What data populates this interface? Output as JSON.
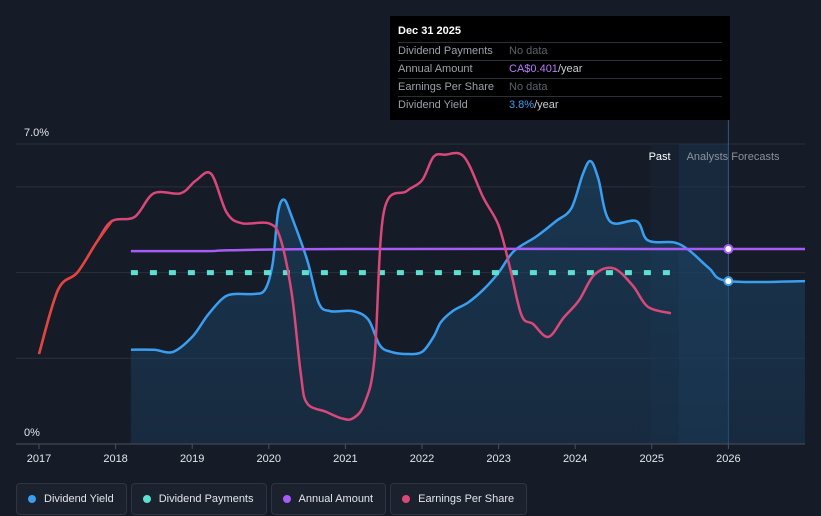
{
  "tooltip": {
    "date": "Dec 31 2025",
    "rows": [
      {
        "label": "Dividend Payments",
        "value": "No data"
      },
      {
        "label": "Annual Amount",
        "value": "CA$0.401",
        "unit": "/year"
      },
      {
        "label": "Earnings Per Share",
        "value": "No data"
      },
      {
        "label": "Dividend Yield",
        "value": "3.8%",
        "unit": "/year"
      }
    ]
  },
  "legend": [
    {
      "label": "Dividend Yield",
      "color": "#3a9ff0"
    },
    {
      "label": "Dividend Payments",
      "color": "#5de0d1"
    },
    {
      "label": "Annual Amount",
      "color": "#a75cf5"
    },
    {
      "label": "Earnings Per Share",
      "color": "#d94879"
    }
  ],
  "chart_data": {
    "type": "line",
    "title": "",
    "xlabel": "",
    "ylabel": "",
    "y_tick_labels": [
      "7.0%",
      "0%"
    ],
    "ylim": [
      0,
      7.0
    ],
    "xlim": [
      2016.7,
      2027.0
    ],
    "x_ticks": [
      2017,
      2018,
      2019,
      2020,
      2021,
      2022,
      2023,
      2024,
      2025,
      2026
    ],
    "past_label": "Past",
    "forecast_label": "Analysts Forecasts",
    "past_forecast_divider": 2025.35,
    "tooltip_marker_x": 2026.0,
    "series": [
      {
        "name": "Dividend Yield",
        "color": "#3a9ff0",
        "filled": true,
        "x": [
          2018.2,
          2018.5,
          2018.75,
          2019.0,
          2019.2,
          2019.4,
          2019.55,
          2019.8,
          2019.95,
          2020.05,
          2020.12,
          2020.2,
          2020.3,
          2020.5,
          2020.65,
          2020.8,
          2021.1,
          2021.3,
          2021.45,
          2021.6,
          2021.8,
          2022.0,
          2022.15,
          2022.25,
          2022.4,
          2022.6,
          2022.8,
          2023.0,
          2023.2,
          2023.5,
          2023.75,
          2023.95,
          2024.1,
          2024.2,
          2024.3,
          2024.45,
          2024.8,
          2024.95,
          2025.3,
          2025.5,
          2025.75,
          2026.0,
          2027.0
        ],
        "values": [
          2.2,
          2.2,
          2.15,
          2.5,
          3.0,
          3.4,
          3.5,
          3.5,
          3.6,
          4.2,
          5.4,
          5.7,
          5.3,
          4.3,
          3.3,
          3.1,
          3.1,
          2.9,
          2.3,
          2.15,
          2.1,
          2.15,
          2.5,
          2.85,
          3.1,
          3.3,
          3.6,
          4.0,
          4.5,
          4.85,
          5.2,
          5.5,
          6.3,
          6.6,
          6.2,
          5.2,
          5.2,
          4.75,
          4.7,
          4.5,
          4.1,
          3.8,
          3.8
        ]
      },
      {
        "name": "Dividend Payments",
        "color": "#5de0d1",
        "dashed": true,
        "x": [
          2018.2,
          2025.3
        ],
        "values": [
          4.0,
          4.0
        ]
      },
      {
        "name": "Annual Amount",
        "color": "#a75cf5",
        "x": [
          2018.2,
          2019.2,
          2019.5,
          2021.0,
          2026.0,
          2027.0
        ],
        "values": [
          4.5,
          4.5,
          4.52,
          4.55,
          4.55,
          4.55
        ]
      },
      {
        "name": "Earnings Per Share",
        "color": "#d94879",
        "x": [
          2017.0,
          2017.25,
          2017.5,
          2017.75,
          2017.95,
          2018.25,
          2018.5,
          2018.85,
          2019.05,
          2019.25,
          2019.45,
          2019.65,
          2020.0,
          2020.15,
          2020.3,
          2020.42,
          2020.5,
          2020.75,
          2020.95,
          2021.1,
          2021.25,
          2021.38,
          2021.5,
          2021.8,
          2022.0,
          2022.15,
          2022.3,
          2022.55,
          2022.8,
          2023.0,
          2023.15,
          2023.3,
          2023.45,
          2023.65,
          2023.85,
          2024.05,
          2024.25,
          2024.5,
          2024.75,
          2024.95,
          2025.25
        ],
        "values": [
          2.1,
          3.6,
          4.0,
          4.7,
          5.2,
          5.3,
          5.85,
          5.85,
          6.15,
          6.3,
          5.4,
          5.15,
          5.15,
          4.8,
          3.5,
          1.6,
          0.95,
          0.75,
          0.6,
          0.6,
          0.95,
          2.0,
          5.4,
          5.9,
          6.15,
          6.7,
          6.75,
          6.7,
          5.75,
          5.1,
          4.1,
          3.0,
          2.8,
          2.5,
          2.95,
          3.35,
          3.95,
          4.1,
          3.7,
          3.2,
          3.05
        ]
      }
    ]
  }
}
